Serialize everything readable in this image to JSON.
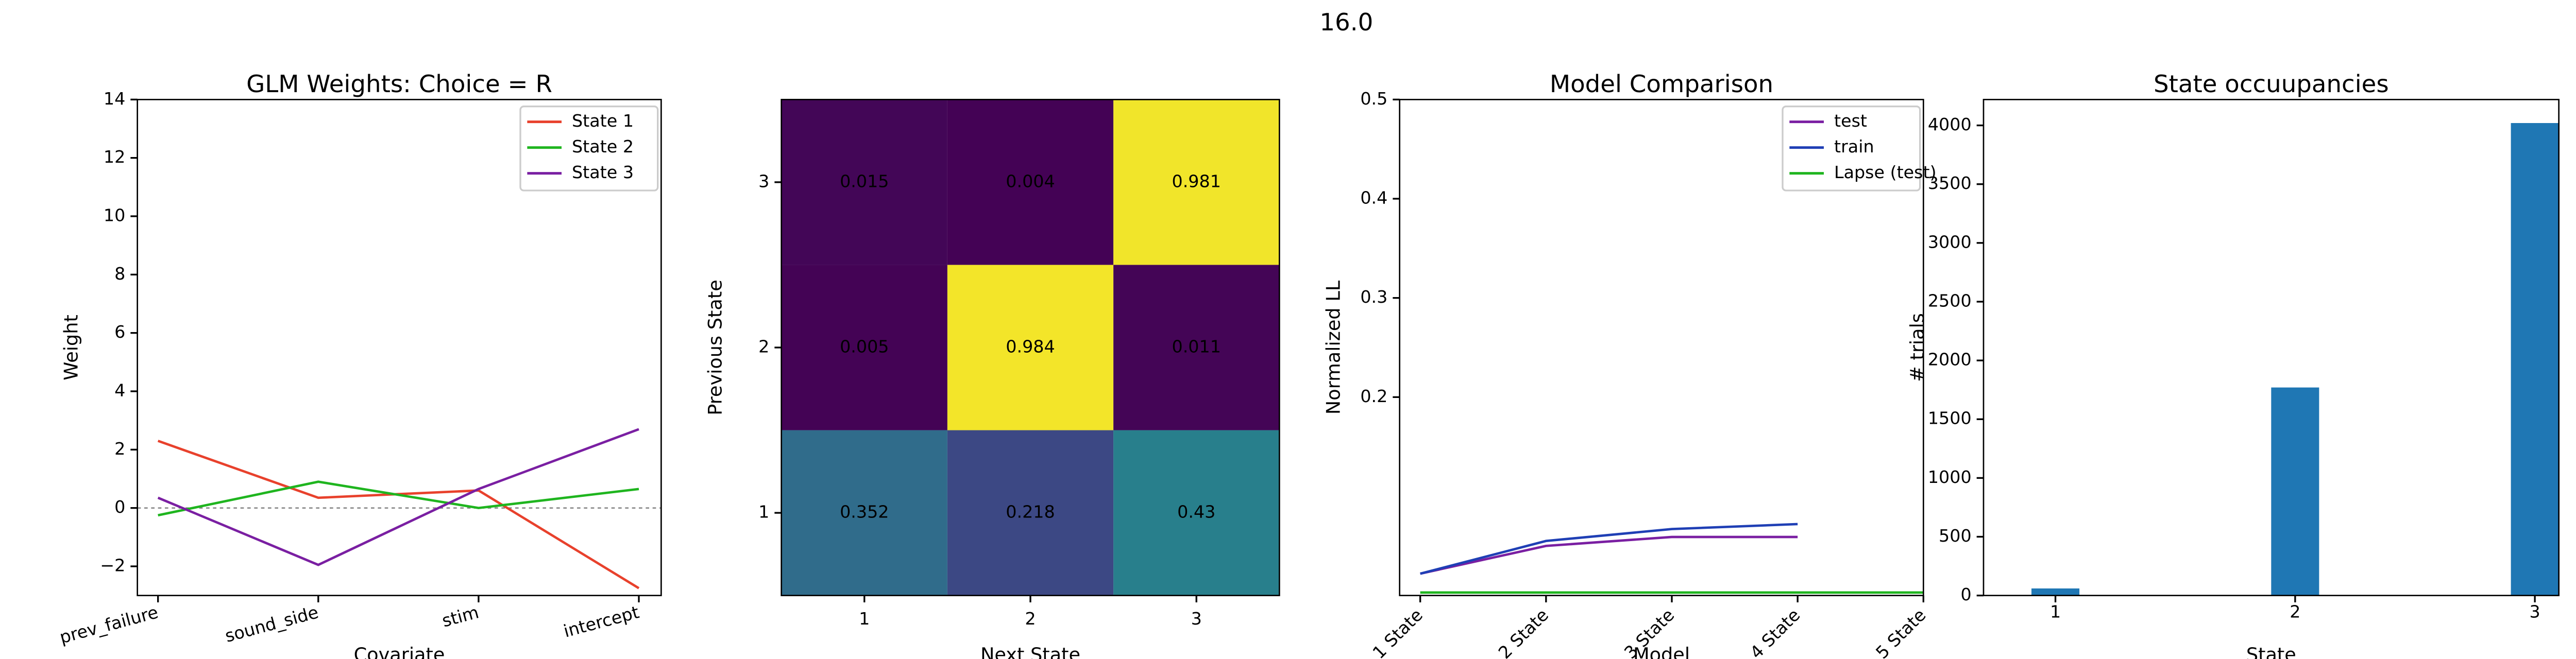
{
  "suptitle": "16.0",
  "chart_data": [
    {
      "type": "line",
      "title": "GLM Weights: Choice = R",
      "xlabel": "Covariate",
      "ylabel": "Weight",
      "categories": [
        "prev_failure",
        "sound_side",
        "stim",
        "intercept"
      ],
      "series": [
        {
          "name": "State 1",
          "color": "#e8412c",
          "values": [
            2.3,
            0.35,
            0.6,
            -2.75
          ]
        },
        {
          "name": "State 2",
          "color": "#1fb51f",
          "values": [
            -0.25,
            0.9,
            0.0,
            0.65
          ]
        },
        {
          "name": "State 3",
          "color": "#7a1fa2",
          "values": [
            0.35,
            -1.95,
            0.65,
            2.7
          ]
        }
      ],
      "ylim": [
        -3,
        14
      ],
      "yticks": [
        {
          "value": -2,
          "label": "−2"
        },
        0,
        2,
        4,
        6,
        8,
        10,
        12,
        14
      ],
      "hline": 0,
      "legend": "upper right"
    },
    {
      "type": "heatmap",
      "xlabel": "Next State",
      "ylabel": "Previous State",
      "x_categories": [
        "1",
        "2",
        "3"
      ],
      "y_categories": [
        "1",
        "2",
        "3"
      ],
      "values": [
        [
          0.352,
          0.218,
          0.43
        ],
        [
          0.005,
          0.984,
          0.011
        ],
        [
          0.015,
          0.004,
          0.981
        ]
      ],
      "colormap": "viridis"
    },
    {
      "type": "line",
      "title": "Model Comparison",
      "xlabel": "Model",
      "ylabel": "Normalized LL",
      "categories": [
        "1 State",
        "2 State",
        "3 State",
        "4 State",
        "5 State"
      ],
      "series": [
        {
          "name": "test",
          "color": "#7a1fa2",
          "values": [
            0.022,
            0.05,
            0.059,
            0.059,
            null
          ]
        },
        {
          "name": "train",
          "color": "#1f3fb5",
          "values": [
            0.022,
            0.055,
            0.067,
            0.072,
            null
          ]
        },
        {
          "name": "Lapse (test)",
          "color": "#1fb51f",
          "values": [
            0.003,
            0.003,
            0.003,
            0.003,
            0.003
          ]
        }
      ],
      "ylim": [
        0,
        0.5
      ],
      "yticks": [
        0.2,
        0.3,
        0.4,
        0.5
      ],
      "legend": "upper right"
    },
    {
      "type": "bar",
      "title": "State occuupancies",
      "xlabel": "State",
      "ylabel": "# trials",
      "x": [
        1,
        2,
        3
      ],
      "values": [
        60,
        1770,
        4020
      ],
      "color": "#1f77b4",
      "xlim": [
        0.7,
        3.1
      ],
      "xticks": [
        1,
        2,
        3
      ],
      "ylim": [
        0,
        4220
      ],
      "yticks": [
        0,
        500,
        1000,
        1500,
        2000,
        2500,
        3000,
        3500,
        4000
      ]
    }
  ]
}
